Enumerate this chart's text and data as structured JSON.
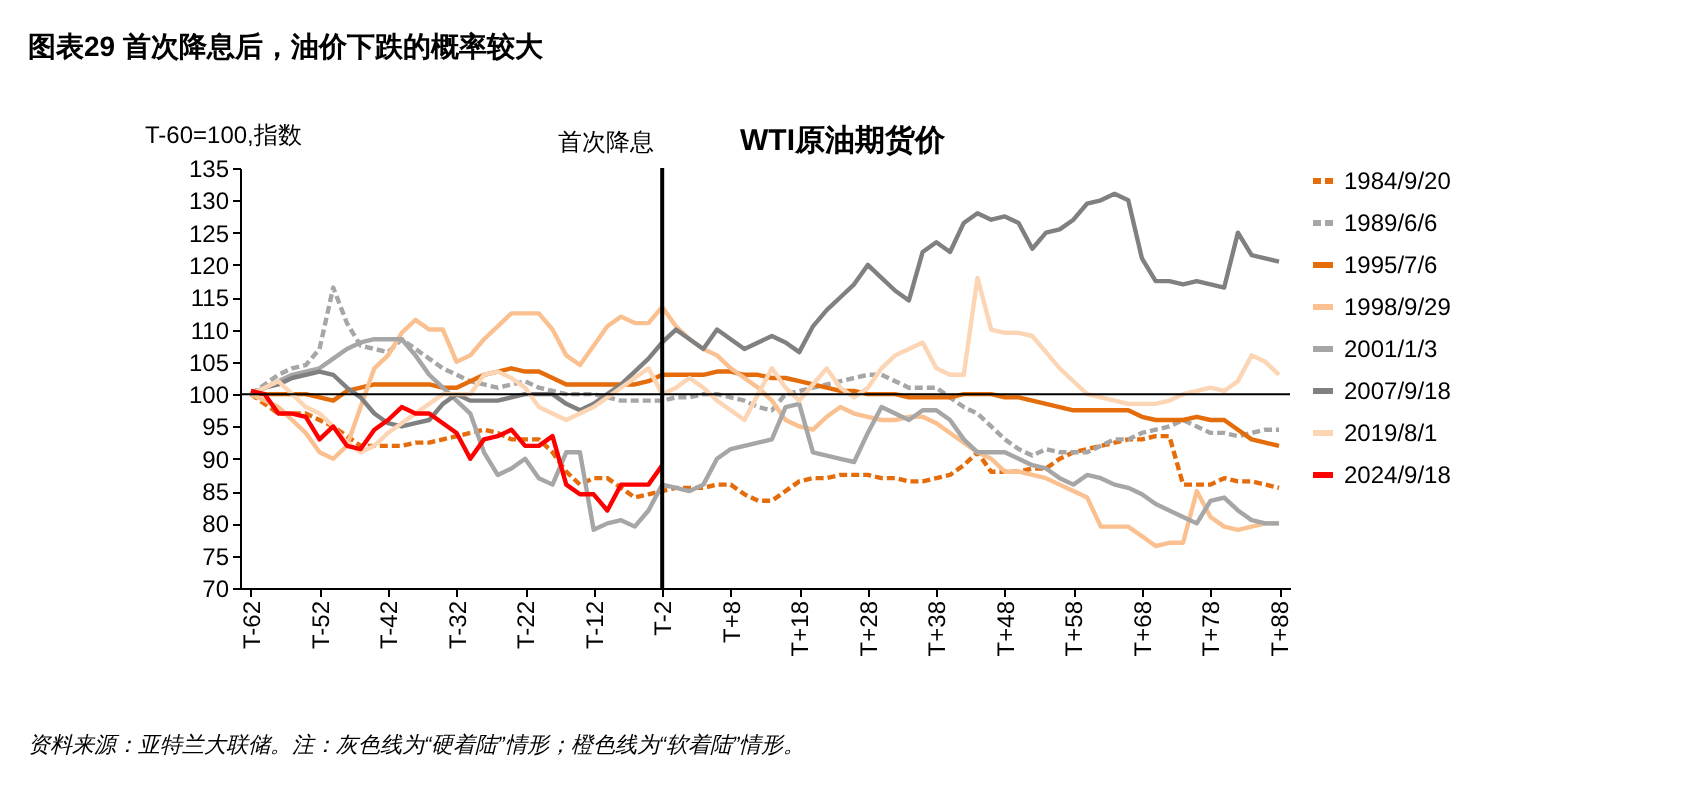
{
  "chart_data": {
    "type": "line",
    "title": "图表29  首次降息后，油价下跌的概率较大",
    "subtitle": "WTI原油期货价",
    "ylabel": "T-60=100,指数",
    "annotations": [
      "资料来源：亚特兰大联储。注：灰色线为“硬着陆”情形；橙色线为“软着陆”情形。"
    ],
    "ylim": [
      70,
      135
    ],
    "yticks": [
      70,
      75,
      80,
      85,
      90,
      95,
      100,
      105,
      110,
      115,
      120,
      125,
      130,
      135
    ],
    "categories": [
      "T-62",
      null,
      null,
      null,
      null,
      "T-52",
      null,
      null,
      null,
      null,
      "T-42",
      null,
      null,
      null,
      null,
      "T-32",
      null,
      null,
      null,
      null,
      "T-22",
      null,
      null,
      null,
      null,
      "T-12",
      null,
      null,
      null,
      null,
      "T-2",
      null,
      null,
      null,
      null,
      "T+8",
      null,
      null,
      null,
      null,
      "T+18",
      null,
      null,
      null,
      null,
      "T+28",
      null,
      null,
      null,
      null,
      "T+38",
      null,
      null,
      null,
      null,
      "T+48",
      null,
      null,
      null,
      null,
      "T+58",
      null,
      null,
      null,
      null,
      "T+68",
      null,
      null,
      null,
      null,
      "T+78",
      null,
      null,
      null,
      null,
      "T+88"
    ],
    "grid": false,
    "legend": "right",
    "marker": "none",
    "ref_lines": [
      {
        "axis": "x",
        "value": "T-2",
        "label": "首次降息",
        "color": "#000000"
      },
      {
        "axis": "y",
        "value": 100,
        "label": null,
        "color": "#000000"
      }
    ],
    "series": [
      {
        "name": "1984/9/20",
        "color": "#e46c0a",
        "line_style": "dashed",
        "values": [
          100,
          98.5,
          97,
          97,
          97,
          96,
          95,
          93.5,
          92,
          92,
          92,
          92,
          92.5,
          92.5,
          93,
          93.5,
          94,
          94.5,
          94,
          93,
          93,
          93,
          91,
          88,
          86,
          87,
          87,
          85.5,
          84,
          84.5,
          85,
          85.5,
          85.5,
          85.5,
          86,
          86,
          84.5,
          83.5,
          83.5,
          85,
          86.5,
          87,
          87,
          87.5,
          87.5,
          87.5,
          87,
          87,
          86.5,
          86.5,
          87,
          87.5,
          89,
          91,
          88,
          88,
          88,
          88.5,
          88.5,
          90,
          91,
          91.5,
          92,
          92.5,
          93,
          93,
          93.5,
          93.5,
          86,
          86,
          86,
          87,
          86.5,
          86.5,
          86,
          85.5
        ]
      },
      {
        "name": "1989/6/6",
        "color": "#a6a6a6",
        "line_style": "dashed",
        "values": [
          100,
          101.5,
          103,
          104,
          104.5,
          107,
          116.5,
          111,
          107.5,
          107,
          106.5,
          108.5,
          107,
          105.5,
          104,
          103,
          102,
          101.5,
          101,
          101.5,
          102,
          101,
          100.5,
          100,
          100,
          100,
          99.5,
          99,
          99,
          99,
          99,
          99.5,
          99.5,
          100,
          100,
          99.5,
          99,
          98,
          97.5,
          100,
          100.5,
          101,
          101.5,
          102,
          102.5,
          103,
          103,
          102,
          101,
          101,
          101,
          99.5,
          98,
          97,
          95,
          93,
          91.5,
          90.5,
          91.5,
          91,
          91,
          91,
          92,
          93,
          93,
          94,
          94.5,
          95,
          96,
          95,
          94,
          94,
          93.5,
          94,
          94.5,
          94.5
        ]
      },
      {
        "name": "1995/7/6",
        "color": "#e46c0a",
        "line_style": "solid",
        "values": [
          100,
          100,
          100,
          100,
          100,
          99.5,
          99,
          100.5,
          101,
          101.5,
          101.5,
          101.5,
          101.5,
          101.5,
          101,
          101,
          102,
          103,
          103.5,
          104,
          103.5,
          103.5,
          102.5,
          101.5,
          101.5,
          101.5,
          101.5,
          101.5,
          101.5,
          102,
          103,
          103,
          103,
          103,
          103.5,
          103.5,
          103,
          103,
          102.5,
          102.5,
          102,
          101.5,
          101,
          100.5,
          100.5,
          100,
          100,
          100,
          99.5,
          99.5,
          99.5,
          99.5,
          100,
          100,
          100,
          99.5,
          99.5,
          99,
          98.5,
          98,
          97.5,
          97.5,
          97.5,
          97.5,
          97.5,
          96.5,
          96,
          96,
          96,
          96.5,
          96,
          96,
          94.5,
          93,
          92.5,
          92
        ]
      },
      {
        "name": "1998/9/29",
        "color": "#fac090",
        "line_style": "solid",
        "values": [
          100,
          99,
          98,
          96,
          94,
          91,
          90,
          92,
          98,
          104,
          106,
          109.5,
          111.5,
          110,
          110,
          105,
          106,
          108.5,
          110.5,
          112.5,
          112.5,
          112.5,
          110,
          106,
          104.5,
          107.5,
          110.5,
          112,
          111,
          111,
          113.5,
          110.5,
          108.5,
          107,
          106,
          104,
          102.5,
          101,
          99,
          96,
          95,
          94.5,
          96.5,
          98,
          97,
          96.5,
          96,
          96,
          96.5,
          96.5,
          95.5,
          94,
          92.5,
          91,
          90,
          88,
          88,
          87.5,
          87,
          86,
          85,
          84,
          79.5,
          79.5,
          79.5,
          78,
          76.5,
          77,
          77,
          85,
          81,
          79.5,
          79,
          79.5,
          80,
          80
        ]
      },
      {
        "name": "2001/1/3",
        "color": "#a6a6a6",
        "line_style": "solid",
        "values": [
          100,
          101,
          102,
          103,
          103.5,
          104,
          105.5,
          107,
          108,
          108.5,
          108.5,
          108.5,
          106,
          103,
          101,
          99,
          97,
          91,
          87.5,
          88.5,
          90,
          87,
          86,
          91,
          91,
          79,
          80,
          80.5,
          79.5,
          82,
          86,
          85.5,
          85,
          86,
          90,
          91.5,
          92,
          92.5,
          93,
          98,
          98.5,
          91,
          90.5,
          90,
          89.5,
          94,
          98,
          97,
          96,
          97.5,
          97.5,
          96,
          93,
          91,
          91,
          91,
          90,
          89,
          88.5,
          87,
          86,
          87.5,
          87,
          86,
          85.5,
          84.5,
          83,
          82,
          81,
          80,
          83.5,
          84,
          82,
          80.5,
          80,
          80
        ]
      },
      {
        "name": "2007/9/18",
        "color": "#808080",
        "line_style": "solid",
        "values": [
          100,
          101,
          101.5,
          102.5,
          103,
          103.5,
          103,
          101,
          99.5,
          97,
          95.5,
          95,
          95.5,
          96,
          98.5,
          100,
          99,
          99,
          99,
          99.5,
          100,
          100,
          100,
          98.5,
          97.5,
          98.5,
          100,
          101.5,
          103.5,
          105.5,
          108,
          110,
          108.5,
          107,
          110,
          108.5,
          107,
          108,
          109,
          108,
          106.5,
          110.5,
          113,
          115,
          117,
          120,
          118,
          116,
          114.5,
          122,
          123.5,
          122,
          126.5,
          128,
          127,
          127.5,
          126.5,
          122.5,
          125,
          125.5,
          127,
          129.5,
          130,
          131,
          130,
          121,
          117.5,
          117.5,
          117,
          117.5,
          117,
          116.5,
          125,
          121.5,
          121,
          120.5
        ]
      },
      {
        "name": "2019/8/1",
        "color": "#fcd5b5",
        "line_style": "solid",
        "values": [
          100,
          101,
          102,
          100,
          98,
          97,
          95,
          92.5,
          91,
          92,
          94,
          95.5,
          97,
          98.5,
          100,
          100,
          100,
          103,
          103.5,
          102.5,
          101,
          98,
          97,
          96,
          97,
          98,
          99.5,
          101,
          102.5,
          104,
          100,
          101,
          102.5,
          101,
          99,
          97.5,
          96,
          100,
          104,
          101,
          99,
          101.5,
          104,
          101,
          99.5,
          101,
          104,
          106,
          107,
          108,
          104,
          103,
          103,
          118,
          110,
          109.5,
          109.5,
          109,
          106.5,
          104,
          102,
          100,
          99.5,
          99,
          98.5,
          98.5,
          98.5,
          99,
          100,
          100.5,
          101,
          100.5,
          102,
          106,
          105,
          103
        ]
      },
      {
        "name": "2024/9/18",
        "color": "#ff0000",
        "line_style": "solid",
        "values": [
          100.5,
          100,
          97,
          97,
          96.5,
          93,
          95,
          92,
          91.5,
          94.5,
          96,
          98,
          97,
          97,
          95.5,
          94,
          90,
          93,
          93.5,
          94.5,
          92,
          92,
          93.5,
          86,
          84.5,
          84.5,
          82,
          86,
          86,
          86,
          89,
          null,
          null,
          null,
          null,
          null,
          null,
          null,
          null,
          null,
          null,
          null,
          null,
          null,
          null,
          null,
          null,
          null,
          null,
          null,
          null,
          null,
          null,
          null,
          null,
          null,
          null,
          null,
          null,
          null,
          null,
          null,
          null,
          null,
          null,
          null,
          null,
          null,
          null,
          null,
          null,
          null,
          null,
          null,
          null,
          null
        ]
      }
    ]
  }
}
